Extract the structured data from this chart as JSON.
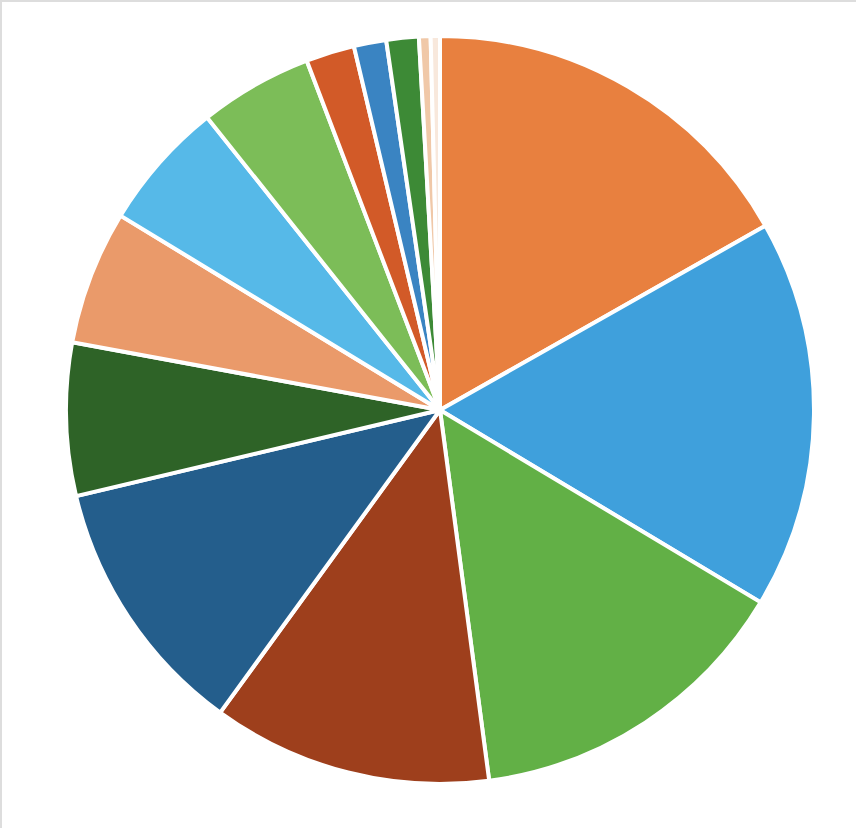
{
  "chart_data": {
    "type": "pie",
    "categories": [
      null,
      null,
      null,
      null,
      null,
      null,
      null,
      null,
      null,
      null,
      null,
      null,
      null,
      null
    ],
    "values": [
      16.8,
      16.8,
      14.3,
      12.1,
      11.3,
      6.6,
      5.8,
      5.6,
      4.9,
      2.1,
      1.4,
      1.4,
      0.5,
      0.4
    ],
    "colors": [
      "#e8803f",
      "#3fa0dc",
      "#62b046",
      "#9e3f1c",
      "#245e8c",
      "#2e6327",
      "#ea9a6a",
      "#56b9e8",
      "#7cbd58",
      "#d25a28",
      "#3a84c2",
      "#3d8a36",
      "#f0c8a8",
      "#f8e8dc"
    ]
  }
}
